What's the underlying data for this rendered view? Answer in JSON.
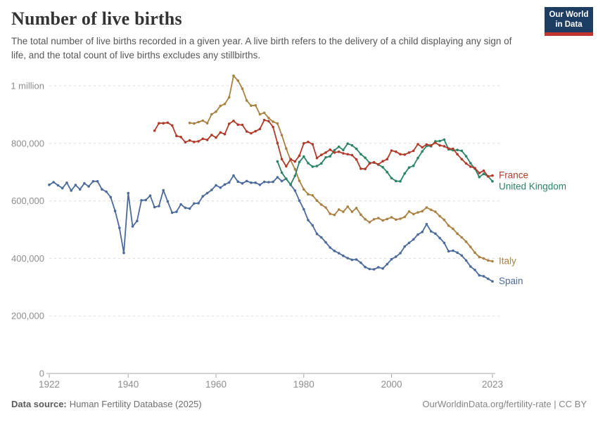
{
  "header": {
    "title": "Number of live births",
    "subtitle": "The total number of live births recorded in a given year. A live birth refers to the delivery of a child displaying any sign of life, and the total count of live births excludes any stillbirths.",
    "logo": {
      "line1": "Our World",
      "line2": "in Data",
      "bg_color": "#1D3D63",
      "stripe_color": "#C0342B"
    }
  },
  "chart_data": {
    "type": "line",
    "title": "Number of live births",
    "xlabel": "",
    "ylabel": "",
    "grid": "dashed-horizontal",
    "legend_position": "line-end-labels",
    "x_axis": {
      "ticks": [
        1922,
        1940,
        1960,
        1980,
        2000,
        2023
      ],
      "range": [
        1922,
        2023
      ]
    },
    "y_axis": {
      "range": [
        0,
        1050000
      ],
      "ticks": [
        {
          "value": 0,
          "label": "0"
        },
        {
          "value": 200000,
          "label": "200,000"
        },
        {
          "value": 400000,
          "label": "400,000"
        },
        {
          "value": 600000,
          "label": "600,000"
        },
        {
          "value": 800000,
          "label": "800,000"
        },
        {
          "value": 1000000,
          "label": "1 million"
        }
      ]
    },
    "series": [
      {
        "name": "France",
        "color": "#B13B2A",
        "start_year": 1946,
        "values": [
          844000,
          870000,
          870000,
          872000,
          862000,
          826000,
          822000,
          804000,
          810000,
          805000,
          807000,
          816000,
          812000,
          829000,
          820000,
          838000,
          832000,
          868000,
          878000,
          865000,
          864000,
          841000,
          835000,
          842000,
          850000,
          881000,
          877000,
          857000,
          801000,
          745000,
          720000,
          745000,
          737000,
          757000,
          800000,
          805000,
          797000,
          749000,
          760000,
          768000,
          778000,
          768000,
          771000,
          765000,
          762000,
          759000,
          744000,
          712000,
          711000,
          730000,
          734000,
          727000,
          738000,
          745000,
          775000,
          771000,
          762000,
          761000,
          768000,
          774000,
          797000,
          786000,
          796000,
          793000,
          802000,
          793000,
          790000,
          782000,
          781000,
          762000,
          745000,
          730000,
          719000,
          714000,
          697000,
          705000,
          685000,
          688000
        ]
      },
      {
        "name": "United Kingdom",
        "color": "#2C8465",
        "start_year": 1974,
        "values": [
          737000,
          698000,
          676000,
          657000,
          687000,
          735000,
          754000,
          731000,
          719000,
          721000,
          730000,
          751000,
          755000,
          776000,
          788000,
          777000,
          799000,
          793000,
          781000,
          762000,
          750000,
          732000,
          733000,
          726000,
          717000,
          700000,
          679000,
          669000,
          668000,
          695000,
          716000,
          722000,
          749000,
          772000,
          791000,
          790000,
          807000,
          808000,
          813000,
          779000,
          776000,
          777000,
          774000,
          755000,
          731000,
          712000,
          683000,
          694000,
          685000,
          668000
        ]
      },
      {
        "name": "Italy",
        "color": "#A98243",
        "start_year": 1954,
        "values": [
          871000,
          869000,
          874000,
          879000,
          870000,
          901000,
          910000,
          930000,
          937000,
          960000,
          1035000,
          1018000,
          990000,
          949000,
          931000,
          932000,
          901000,
          906000,
          888000,
          875000,
          869000,
          828000,
          782000,
          741000,
          710000,
          670000,
          640000,
          623000,
          619000,
          601000,
          587000,
          577000,
          555000,
          551000,
          570000,
          562000,
          580000,
          562000,
          575000,
          552000,
          536000,
          526000,
          536000,
          540000,
          532000,
          537000,
          543000,
          535000,
          538000,
          544000,
          563000,
          554000,
          560000,
          564000,
          577000,
          569000,
          562000,
          547000,
          534000,
          514000,
          503000,
          486000,
          473000,
          458000,
          440000,
          420000,
          405000,
          400000,
          393000,
          390000
        ]
      },
      {
        "name": "Spain",
        "color": "#4C6A9C",
        "start_year": 1922,
        "values": [
          656000,
          665000,
          654000,
          644000,
          663000,
          636000,
          655000,
          640000,
          661000,
          650000,
          668000,
          668000,
          640000,
          632000,
          613000,
          565000,
          506000,
          419000,
          627000,
          511000,
          530000,
          602000,
          603000,
          618000,
          578000,
          582000,
          637000,
          598000,
          559000,
          562000,
          588000,
          576000,
          573000,
          591000,
          592000,
          616000,
          627000,
          638000,
          654000,
          646000,
          657000,
          664000,
          688000,
          667000,
          661000,
          669000,
          663000,
          663000,
          656000,
          666000,
          665000,
          666000,
          682000,
          669000,
          677000,
          656000,
          636000,
          601000,
          571000,
          533000,
          515000,
          485000,
          473000,
          456000,
          438000,
          426000,
          418000,
          409000,
          401000,
          395000,
          396000,
          385000,
          370000,
          363000,
          362000,
          369000,
          365000,
          380000,
          397000,
          406000,
          418000,
          441000,
          454000,
          466000,
          483000,
          492000,
          519000,
          494000,
          486000,
          471000,
          454000,
          425000,
          427000,
          420000,
          410000,
          393000,
          372000,
          360000,
          341000,
          338000,
          329000,
          320000
        ]
      }
    ],
    "style": {
      "gridline_color": "#dcdcdc",
      "axis_color": "#a5a5a5",
      "tick_label_color": "#8e8e8e"
    }
  },
  "footer": {
    "source_label": "Data source:",
    "source_text": "Human Fertility Database (2025)",
    "url_text": "OurWorldinData.org/fertility-rate",
    "separator": " | ",
    "license_text": "CC BY"
  }
}
